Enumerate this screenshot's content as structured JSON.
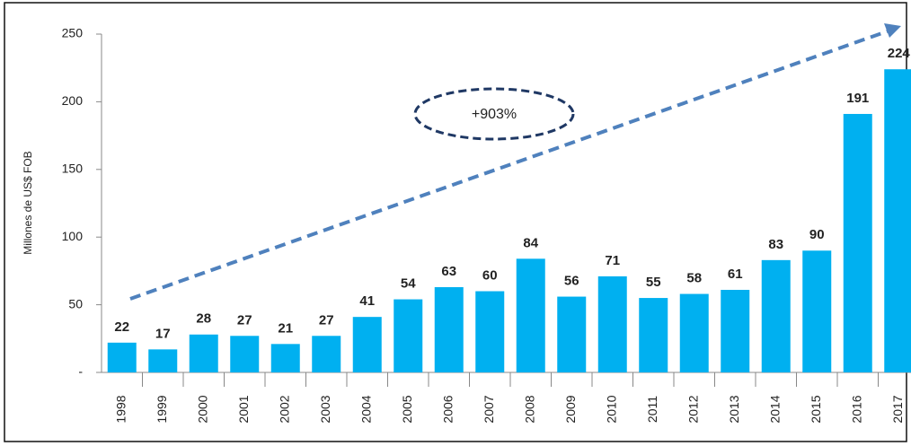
{
  "chart_data": {
    "type": "bar",
    "y_axis_label": "Millones de US$ FOB",
    "annotation": "+903%",
    "categories": [
      "1998",
      "1999",
      "2000",
      "2001",
      "2002",
      "2003",
      "2004",
      "2005",
      "2006",
      "2007",
      "2008",
      "2009",
      "2010",
      "2011",
      "2012",
      "2013",
      "2014",
      "2015",
      "2016",
      "2017"
    ],
    "values": [
      22,
      17,
      28,
      27,
      21,
      27,
      41,
      54,
      63,
      60,
      84,
      56,
      71,
      55,
      58,
      61,
      83,
      90,
      191,
      224
    ],
    "color": "#00b0f0",
    "ylim": [
      0,
      250
    ],
    "yticks": [
      {
        "value": 0,
        "label": "-"
      },
      50,
      100,
      150,
      200,
      250
    ],
    "grid": false
  }
}
